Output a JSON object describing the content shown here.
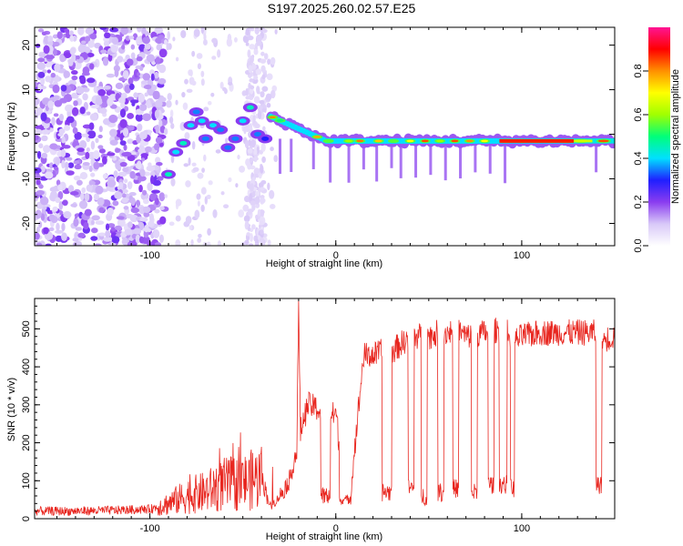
{
  "title": "S197.2025.260.02.57.E25",
  "colorbar": {
    "label": "Normalized spectral amplitude",
    "ticks": [
      0.0,
      0.2,
      0.4,
      0.6,
      0.8
    ],
    "tick_labels": [
      "0.0",
      "0.2",
      "0.4",
      "0.6",
      "0.8"
    ],
    "range": [
      0,
      1
    ],
    "colormap": [
      "#ffffff",
      "#d8c8f8",
      "#8a3cf0",
      "#1f1fff",
      "#00e0ff",
      "#00ff7a",
      "#a0ff00",
      "#ffff00",
      "#ff9000",
      "#ff0000",
      "#ff1493"
    ]
  },
  "chart_data": [
    {
      "type": "heatmap",
      "title": "",
      "xlabel": "Height of straight line (km)",
      "ylabel": "Frequency (Hz)",
      "xlim": [
        -162,
        150
      ],
      "ylim": [
        -25,
        24
      ],
      "x_ticks": [
        -100,
        0,
        100
      ],
      "x_tick_labels": [
        "-100",
        "0",
        "100"
      ],
      "y_ticks": [
        -20,
        -10,
        0,
        10,
        20
      ],
      "y_tick_labels": [
        "-20",
        "-10",
        "0",
        "10",
        "20"
      ],
      "features": [
        {
          "label": "broadband noise region",
          "x_range": [
            -162,
            -92
          ],
          "amplitude": 0.12
        },
        {
          "label": "scattered noise column",
          "x_range": [
            -48,
            -38
          ],
          "amplitude": 0.08
        },
        {
          "label": "carrier track",
          "x_range": [
            -35,
            150
          ],
          "frequency_start": 4,
          "frequency_end": -1.5,
          "amplitude": 0.85
        }
      ]
    },
    {
      "type": "line",
      "title": "",
      "xlabel": "Height of straight line (km)",
      "ylabel": "SNR (10 * v/v)",
      "xlim": [
        -162,
        150
      ],
      "ylim": [
        0,
        580
      ],
      "x_ticks": [
        -100,
        0,
        100
      ],
      "x_tick_labels": [
        "-100",
        "0",
        "100"
      ],
      "y_ticks": [
        0,
        100,
        200,
        300,
        400,
        500
      ],
      "y_tick_labels": [
        "0",
        "100",
        "200",
        "300",
        "400",
        "500"
      ],
      "color": "#e8261f",
      "series": [
        {
          "name": "SNR",
          "x": [
            -162,
            -140,
            -120,
            -100,
            -90,
            -80,
            -70,
            -60,
            -50,
            -40,
            -35,
            -30,
            -25,
            -21,
            -20,
            -19,
            -15,
            -10,
            -5,
            0,
            5,
            8,
            10,
            15,
            20,
            25,
            30,
            35,
            40,
            45,
            50,
            55,
            60,
            65,
            70,
            80,
            90,
            95,
            97,
            100,
            110,
            120,
            130,
            140,
            142,
            143,
            150
          ],
          "y": [
            20,
            20,
            22,
            25,
            40,
            60,
            70,
            90,
            95,
            110,
            30,
            60,
            100,
            180,
            560,
            230,
            300,
            290,
            260,
            280,
            60,
            60,
            180,
            430,
            430,
            440,
            440,
            460,
            480,
            480,
            480,
            490,
            490,
            500,
            480,
            490,
            500,
            480,
            470,
            480,
            490,
            490,
            490,
            490,
            80,
            470,
            480
          ]
        }
      ],
      "dropouts": [
        {
          "x": [
            -8,
            -3
          ],
          "value": 60
        },
        {
          "x": [
            2,
            7
          ],
          "value": 50
        },
        {
          "x": [
            25,
            30
          ],
          "value": 70
        },
        {
          "x": [
            39,
            42
          ],
          "value": 80
        },
        {
          "x": [
            46,
            49
          ],
          "value": 60
        },
        {
          "x": [
            55,
            58
          ],
          "value": 70
        },
        {
          "x": [
            63,
            66
          ],
          "value": 80
        },
        {
          "x": [
            73,
            76
          ],
          "value": 70
        },
        {
          "x": [
            82,
            85
          ],
          "value": 90
        },
        {
          "x": [
            88,
            92
          ],
          "value": 90
        },
        {
          "x": [
            94,
            96
          ],
          "value": 80
        },
        {
          "x": [
            140,
            143
          ],
          "value": 90
        }
      ]
    }
  ]
}
